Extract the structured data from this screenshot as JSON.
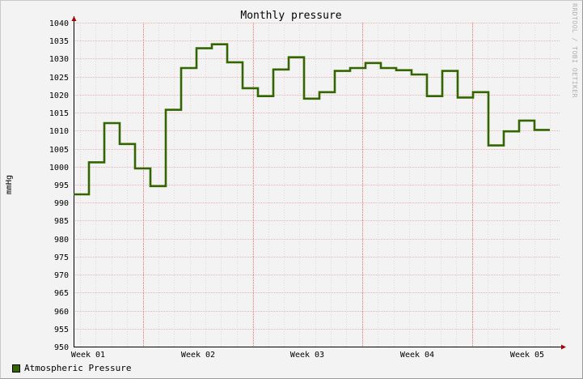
{
  "chart_data": {
    "type": "line",
    "title": "Monthly pressure",
    "ylabel": "mmHg",
    "xlabel": "",
    "ylim": [
      950,
      1040
    ],
    "yticks": [
      950,
      955,
      960,
      965,
      970,
      975,
      980,
      985,
      990,
      995,
      1000,
      1005,
      1010,
      1015,
      1020,
      1025,
      1030,
      1035,
      1040
    ],
    "x_tick_labels": [
      "Week 01",
      "Week 02",
      "Week 03",
      "Week 04",
      "Week 05"
    ],
    "grid": true,
    "legend_position": "bottom-left",
    "series": [
      {
        "name": "Atmospheric Pressure",
        "color": "#336600",
        "values": [
          992.3,
          1001.2,
          1012.1,
          1006.3,
          999.5,
          994.6,
          1015.8,
          1027.4,
          1032.9,
          1034.0,
          1029.0,
          1021.8,
          1019.6,
          1027.0,
          1030.4,
          1018.9,
          1020.7,
          1026.6,
          1027.4,
          1028.8,
          1027.4,
          1026.8,
          1025.6,
          1019.6,
          1026.6,
          1019.2,
          1020.7,
          1005.9,
          1009.8,
          1012.8,
          1010.2
        ]
      }
    ]
  },
  "watermark": "RRDTOOL / TOBI OETIKER"
}
